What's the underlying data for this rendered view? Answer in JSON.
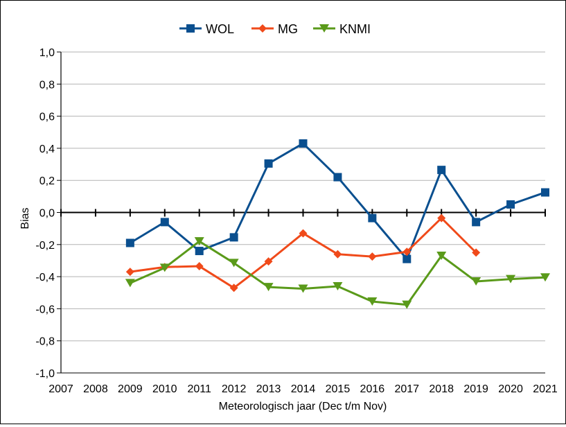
{
  "chart_data": {
    "type": "line",
    "title": "",
    "xlabel": "Meteorologisch jaar (Dec t/m Nov)",
    "ylabel": "Bias",
    "x_categories": [
      "2007",
      "2008",
      "2009",
      "2010",
      "2011",
      "2012",
      "2013",
      "2014",
      "2015",
      "2016",
      "2017",
      "2018",
      "2019",
      "2020",
      "2021"
    ],
    "y_ticks": [
      "1,0",
      "0,8",
      "0,6",
      "0,4",
      "0,2",
      "0,0",
      "-0,2",
      "-0,4",
      "-0,6",
      "-0,8",
      "-1,0"
    ],
    "ylim": [
      -1.0,
      1.0
    ],
    "grid": "horizontal",
    "legend_position": "top",
    "series": [
      {
        "name": "WOL",
        "color": "#0a4f8f",
        "marker": "square",
        "x": [
          2009,
          2010,
          2011,
          2012,
          2013,
          2014,
          2015,
          2016,
          2017,
          2018,
          2019,
          2020,
          2021
        ],
        "values": [
          -0.19,
          -0.06,
          -0.24,
          -0.155,
          0.305,
          0.43,
          0.22,
          -0.035,
          -0.29,
          0.265,
          -0.06,
          0.05,
          0.125
        ]
      },
      {
        "name": "MG",
        "color": "#f04a1a",
        "marker": "diamond",
        "x": [
          2009,
          2010,
          2011,
          2012,
          2013,
          2014,
          2015,
          2016,
          2017,
          2018,
          2019
        ],
        "values": [
          -0.37,
          -0.34,
          -0.335,
          -0.47,
          -0.305,
          -0.13,
          -0.26,
          -0.275,
          -0.245,
          -0.035,
          -0.25
        ]
      },
      {
        "name": "KNMI",
        "color": "#5a9a1a",
        "marker": "triangle-down",
        "x": [
          2009,
          2010,
          2011,
          2012,
          2013,
          2014,
          2015,
          2016,
          2017,
          2018,
          2019,
          2020,
          2021
        ],
        "values": [
          -0.44,
          -0.345,
          -0.18,
          -0.315,
          -0.465,
          -0.475,
          -0.46,
          -0.555,
          -0.575,
          -0.27,
          -0.43,
          -0.415,
          -0.405
        ]
      }
    ]
  }
}
